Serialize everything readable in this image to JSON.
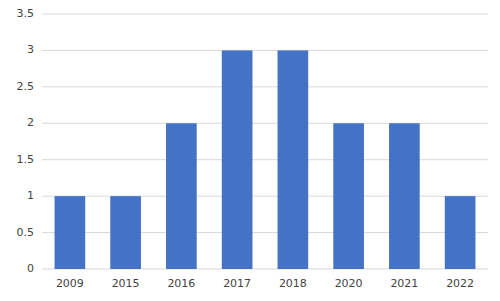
{
  "chart_data": {
    "type": "bar",
    "categories": [
      "2009",
      "2015",
      "2016",
      "2017",
      "2018",
      "2020",
      "2021",
      "2022"
    ],
    "values": [
      1,
      1,
      2,
      3,
      3,
      2,
      2,
      1
    ],
    "color": "#4472C4",
    "ylim": [
      0,
      3.5
    ],
    "yticks": [
      0,
      0.5,
      1,
      1.5,
      2,
      2.5,
      3,
      3.5
    ],
    "grid": true
  }
}
